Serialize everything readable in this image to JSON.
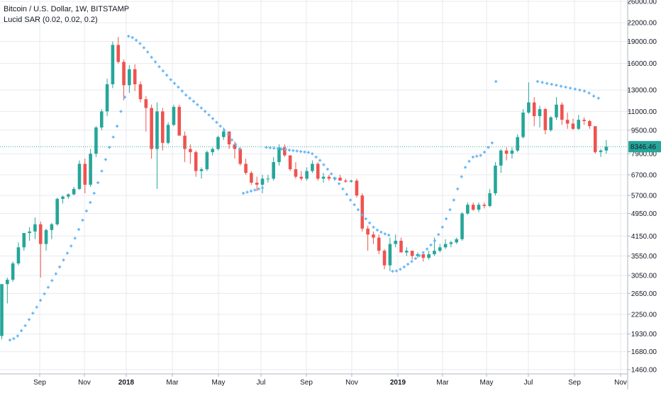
{
  "legend": {
    "line1": "Bitcoin / U.S. Dollar, 1W, BITSTAMP",
    "line2": "Lucid SAR (0.02, 0.02, 0.2)"
  },
  "colors": {
    "up": "#26a69a",
    "down": "#ef5350",
    "sar": "#64b5f6",
    "grid": "#e8eaf0",
    "price_line": "#26a69a",
    "price_label_bg": "#26a69a"
  },
  "chart_data": {
    "type": "candlestick",
    "title": "Bitcoin / U.S. Dollar, 1W, BITSTAMP",
    "indicator": "Lucid SAR (0.02, 0.02, 0.2)",
    "scale": "log",
    "ylim": [
      1460,
      26000
    ],
    "y_ticks": [
      "26000.00",
      "22000.00",
      "19000.00",
      "16000.00",
      "13000.00",
      "11000.00",
      "9500.00",
      "7900.00",
      "6700.00",
      "5700.00",
      "4950.00",
      "4150.00",
      "3550.00",
      "3050.00",
      "2650.00",
      "2250.00",
      "1930.00",
      "1680.00",
      "1460.00"
    ],
    "x_ticks": [
      {
        "label": "Sep",
        "bold": false
      },
      {
        "label": "Nov",
        "bold": false
      },
      {
        "label": "2018",
        "bold": true
      },
      {
        "label": "Mar",
        "bold": false
      },
      {
        "label": "May",
        "bold": false
      },
      {
        "label": "Jul",
        "bold": false
      },
      {
        "label": "Sep",
        "bold": false
      },
      {
        "label": "Nov",
        "bold": false
      },
      {
        "label": "2019",
        "bold": true
      },
      {
        "label": "Mar",
        "bold": false
      },
      {
        "label": "May",
        "bold": false
      },
      {
        "label": "Jul",
        "bold": false
      },
      {
        "label": "Sep",
        "bold": false
      },
      {
        "label": "Nov",
        "bold": false
      }
    ],
    "last_price": "8346.46",
    "candles": [
      [
        1900,
        2850,
        1850,
        2850
      ],
      [
        2850,
        3000,
        2450,
        2950
      ],
      [
        2950,
        3400,
        2900,
        3350
      ],
      [
        3350,
        3950,
        3300,
        3800
      ],
      [
        3800,
        4100,
        3700,
        4250
      ],
      [
        4250,
        4450,
        4000,
        4300
      ],
      [
        4300,
        4800,
        4050,
        4550
      ],
      [
        4550,
        4650,
        3000,
        3900
      ],
      [
        3900,
        4400,
        3700,
        4350
      ],
      [
        4350,
        4600,
        4050,
        4550
      ],
      [
        4550,
        5600,
        4500,
        5550
      ],
      [
        5550,
        5700,
        5350,
        5650
      ],
      [
        5650,
        5800,
        5550,
        5750
      ],
      [
        5750,
        6100,
        5700,
        6000
      ],
      [
        6000,
        7500,
        5950,
        7300
      ],
      [
        7300,
        7600,
        5800,
        6200
      ],
      [
        6200,
        8200,
        6100,
        7900
      ],
      [
        7900,
        9800,
        7700,
        9700
      ],
      [
        9700,
        11200,
        9500,
        11000
      ],
      [
        11000,
        14200,
        10600,
        13600
      ],
      [
        13600,
        19000,
        13200,
        18500
      ],
      [
        18500,
        19700,
        16000,
        16200
      ],
      [
        16200,
        16500,
        12000,
        13500
      ],
      [
        13500,
        15800,
        12700,
        15300
      ],
      [
        15300,
        15900,
        12900,
        13600
      ],
      [
        13600,
        13900,
        11800,
        12100
      ],
      [
        12100,
        12400,
        9400,
        11300
      ],
      [
        11300,
        11600,
        7600,
        8200
      ],
      [
        8200,
        11800,
        6000,
        11000
      ],
      [
        11000,
        11300,
        8100,
        8600
      ],
      [
        8600,
        10100,
        8500,
        9900
      ],
      [
        9900,
        11600,
        9800,
        11400
      ],
      [
        11400,
        11600,
        9200,
        9100
      ],
      [
        9100,
        9400,
        7400,
        8200
      ],
      [
        8200,
        8500,
        7300,
        8000
      ],
      [
        8000,
        8100,
        6600,
        6900
      ],
      [
        6900,
        7100,
        6500,
        7000
      ],
      [
        7000,
        8100,
        6900,
        8000
      ],
      [
        8000,
        8300,
        7800,
        8200
      ],
      [
        8200,
        9100,
        8100,
        9000
      ],
      [
        9000,
        9700,
        8800,
        9400
      ],
      [
        9400,
        9400,
        8200,
        8500
      ],
      [
        8500,
        8700,
        7600,
        8200
      ],
      [
        8200,
        8300,
        7200,
        7300
      ],
      [
        7300,
        7600,
        6700,
        6800
      ],
      [
        6800,
        6900,
        6200,
        6300
      ],
      [
        6300,
        6600,
        5900,
        6200
      ],
      [
        6200,
        6700,
        5800,
        6500
      ],
      [
        6500,
        6700,
        6300,
        6500
      ],
      [
        6500,
        7700,
        6400,
        7400
      ],
      [
        7400,
        8500,
        7200,
        8300
      ],
      [
        8300,
        8500,
        7700,
        7800
      ],
      [
        7800,
        7800,
        6900,
        7000
      ],
      [
        7000,
        7400,
        6500,
        6600
      ],
      [
        6600,
        6900,
        6400,
        6500
      ],
      [
        6500,
        7100,
        6400,
        6900
      ],
      [
        6900,
        7500,
        6800,
        7300
      ],
      [
        7300,
        7400,
        6400,
        6500
      ],
      [
        6500,
        6800,
        6300,
        6600
      ],
      [
        6600,
        6700,
        6400,
        6500
      ],
      [
        6500,
        6600,
        6400,
        6550
      ],
      [
        6550,
        6700,
        6500,
        6400
      ],
      [
        6400,
        6500,
        6300,
        6350
      ],
      [
        6350,
        6450,
        6300,
        6400
      ],
      [
        6400,
        6500,
        5600,
        5700
      ],
      [
        5700,
        5800,
        4300,
        4400
      ],
      [
        4400,
        4500,
        3700,
        4200
      ],
      [
        4200,
        4300,
        3900,
        4100
      ],
      [
        4100,
        4200,
        3600,
        3700
      ],
      [
        3700,
        3750,
        3200,
        3300
      ],
      [
        3300,
        4100,
        3150,
        3900
      ],
      [
        3900,
        4200,
        3800,
        4000
      ],
      [
        4000,
        4100,
        3700,
        3650
      ],
      [
        3650,
        3800,
        3550,
        3700
      ],
      [
        3700,
        3700,
        3450,
        3550
      ],
      [
        3550,
        3650,
        3500,
        3600
      ],
      [
        3600,
        3650,
        3400,
        3500
      ],
      [
        3500,
        3700,
        3450,
        3600
      ],
      [
        3600,
        4100,
        3550,
        3700
      ],
      [
        3700,
        3900,
        3650,
        3800
      ],
      [
        3800,
        4050,
        3750,
        3900
      ],
      [
        3900,
        4000,
        3800,
        3950
      ],
      [
        3950,
        4100,
        3900,
        4050
      ],
      [
        4050,
        5000,
        4000,
        4950
      ],
      [
        4950,
        5400,
        4900,
        5300
      ],
      [
        5300,
        5400,
        5050,
        5100
      ],
      [
        5100,
        5400,
        5000,
        5300
      ],
      [
        5300,
        5400,
        5150,
        5250
      ],
      [
        5250,
        6000,
        5200,
        5800
      ],
      [
        5800,
        7400,
        5700,
        7200
      ],
      [
        7200,
        8200,
        6800,
        8100
      ],
      [
        8100,
        8300,
        7500,
        7900
      ],
      [
        7900,
        8300,
        7600,
        8100
      ],
      [
        8100,
        9200,
        8000,
        9000
      ],
      [
        9000,
        11200,
        8900,
        10900
      ],
      [
        10900,
        13800,
        10800,
        11800
      ],
      [
        11800,
        12300,
        9800,
        10600
      ],
      [
        10600,
        11500,
        9700,
        11200
      ],
      [
        11200,
        11300,
        9200,
        9500
      ],
      [
        9500,
        10600,
        9400,
        10500
      ],
      [
        10500,
        12300,
        10300,
        11600
      ],
      [
        11600,
        11800,
        9900,
        10300
      ],
      [
        10300,
        10900,
        9600,
        10000
      ],
      [
        10000,
        10400,
        9500,
        9600
      ],
      [
        9600,
        10700,
        9500,
        10300
      ],
      [
        10300,
        10500,
        9900,
        10200
      ],
      [
        10200,
        10300,
        9600,
        9800
      ],
      [
        9800,
        9800,
        7900,
        8000
      ],
      [
        8000,
        8200,
        7700,
        8100
      ],
      [
        8100,
        8800,
        7900,
        8346.46
      ]
    ],
    "sar": [
      1840,
      1860,
      1900,
      1980,
      2060,
      2160,
      2270,
      2380,
      2510,
      2640,
      2780,
      2930,
      3090,
      3260,
      3440,
      3630,
      3840,
      4080,
      4370,
      4700,
      5050,
      5400,
      5800,
      6300,
      6900,
      7550,
      8300,
      9000,
      9800,
      11000,
      12300,
      19800,
      19600,
      19200,
      18700,
      18100,
      17500,
      16800,
      16200,
      15600,
      15100,
      14600,
      14100,
      13700,
      13300,
      12900,
      12500,
      12200,
      11900,
      11600,
      11300,
      11000,
      10700,
      10400,
      10100,
      9800,
      9500,
      9200,
      8800,
      8500,
      8200,
      5800,
      5850,
      5900,
      5950,
      6000,
      6050,
      8300,
      8280,
      8250,
      8220,
      8190,
      8160,
      8130,
      8100,
      8070,
      8040,
      8010,
      7980,
      7900,
      7700,
      7500,
      7250,
      7000,
      6750,
      6500,
      6250,
      6000,
      5750,
      5500,
      5300,
      5100,
      4900,
      4750,
      4600,
      4450,
      4350,
      4280,
      4220,
      4180,
      3150,
      3160,
      3200,
      3260,
      3330,
      3400,
      3480,
      3560,
      3650,
      3750,
      3870,
      4000,
      4200,
      4450,
      4750,
      5100,
      5500,
      6000,
      6600,
      7100,
      7450,
      7700,
      7750,
      7800,
      8000,
      8300,
      8600,
      13900
    ],
    "sar_high": [
      13900,
      13800,
      13700,
      13600,
      13500,
      13400,
      13300,
      13200,
      13100,
      13000,
      12900,
      12700,
      12400,
      12200
    ]
  }
}
